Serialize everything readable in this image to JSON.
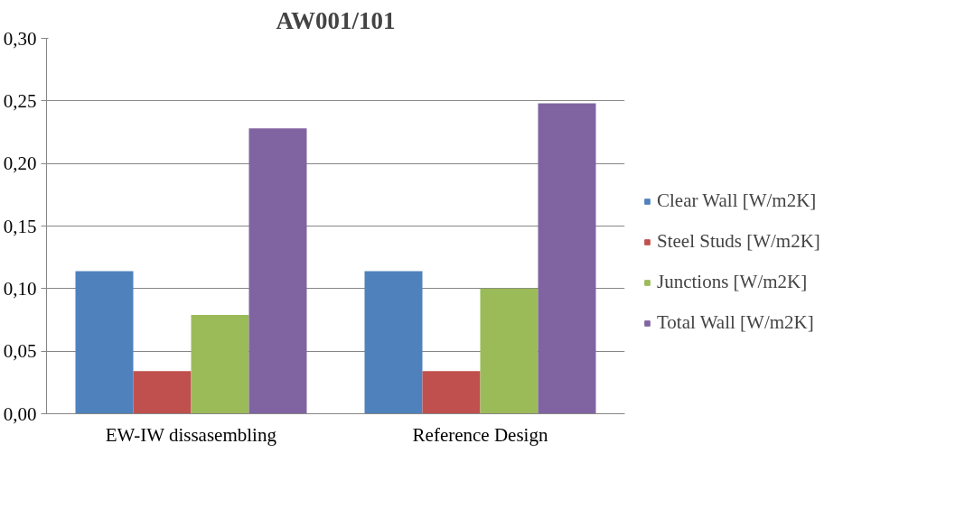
{
  "chart_data": {
    "type": "bar",
    "title": "AW001/101",
    "categories": [
      "EW-IW dissasembling",
      "Reference Design"
    ],
    "series": [
      {
        "name": "Clear Wall [W/m2K]",
        "color": "#4f81bd",
        "values": [
          0.114,
          0.114
        ]
      },
      {
        "name": "Steel Studs [W/m2K]",
        "color": "#c0504d",
        "values": [
          0.034,
          0.034
        ]
      },
      {
        "name": "Junctions [W/m2K]",
        "color": "#9bbb59",
        "values": [
          0.079,
          0.1
        ]
      },
      {
        "name": "Total Wall [W/m2K]",
        "color": "#8064a2",
        "values": [
          0.228,
          0.248
        ]
      }
    ],
    "ylim": [
      0,
      0.3
    ],
    "yticks": [
      {
        "value": 0,
        "label": "0,00"
      },
      {
        "value": 0.05,
        "label": "0,05"
      },
      {
        "value": 0.1,
        "label": "0,10"
      },
      {
        "value": 0.15,
        "label": "0,15"
      },
      {
        "value": 0.2,
        "label": "0,20"
      },
      {
        "value": 0.25,
        "label": "0,25"
      },
      {
        "value": 0.3,
        "label": "0,30"
      }
    ],
    "grid": "y",
    "legend": "right"
  }
}
